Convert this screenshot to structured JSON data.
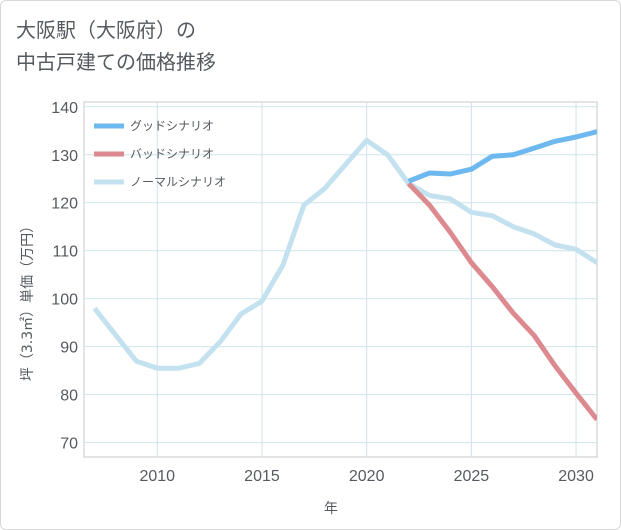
{
  "chart_data": {
    "type": "line",
    "title_line1": "大阪駅（大阪府）の",
    "title_line2": "中古戸建ての価格推移",
    "xlabel": "年",
    "ylabel": "坪（3.3㎡）単価（万円）",
    "xlim": [
      2006.5,
      2031
    ],
    "ylim": [
      67,
      141
    ],
    "x_ticks": [
      2010,
      2015,
      2020,
      2025,
      2030
    ],
    "y_ticks": [
      70,
      80,
      90,
      100,
      110,
      120,
      130,
      140
    ],
    "legend_position": "top-left",
    "series": [
      {
        "name": "グッドシナリオ",
        "color": "#6cb8ef",
        "x": [
          2022,
          2023,
          2024,
          2025,
          2026,
          2027,
          2028,
          2029,
          2030,
          2031
        ],
        "values": [
          124.5,
          126.2,
          126.0,
          127.0,
          129.7,
          130.0,
          131.4,
          132.8,
          133.7,
          134.8
        ]
      },
      {
        "name": "バッドシナリオ",
        "color": "#dc8a90",
        "x": [
          2022,
          2023,
          2024,
          2025,
          2026,
          2027,
          2028,
          2029,
          2030,
          2031
        ],
        "values": [
          124.0,
          119.5,
          113.8,
          107.5,
          102.5,
          97.0,
          92.3,
          86.0,
          80.3,
          74.8
        ]
      },
      {
        "name": "ノーマルシナリオ",
        "color": "#c3e1ee",
        "x": [
          2007,
          2008,
          2009,
          2010,
          2011,
          2012,
          2013,
          2014,
          2015,
          2016,
          2017,
          2018,
          2019,
          2020,
          2021,
          2022,
          2023,
          2024,
          2025,
          2026,
          2027,
          2028,
          2029,
          2030,
          2031
        ],
        "values": [
          98.0,
          92.5,
          87.0,
          85.5,
          85.5,
          86.5,
          91.0,
          96.8,
          99.5,
          107.0,
          119.5,
          123.0,
          128.0,
          133.0,
          130.0,
          124.0,
          121.5,
          120.8,
          118.0,
          117.3,
          115.0,
          113.5,
          111.2,
          110.3,
          107.5
        ]
      }
    ]
  }
}
